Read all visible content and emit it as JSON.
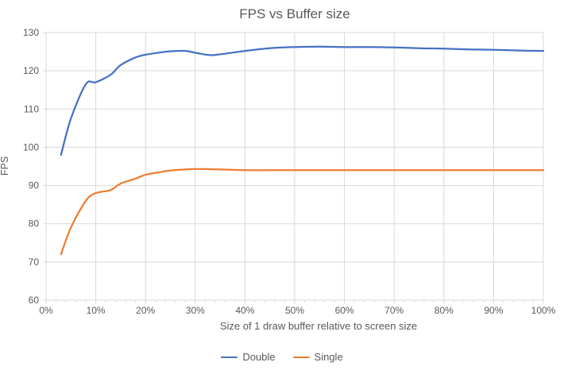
{
  "title": "FPS vs Buffer size",
  "colors": {
    "series_double": "#4472C4",
    "series_single": "#ED7D31",
    "gridline": "#D9D9D9",
    "text": "#595959",
    "background": "#FFFFFF"
  },
  "chart_data": {
    "type": "line",
    "title": "FPS vs Buffer size",
    "xlabel": "Size of 1 draw buffer relative to screen size",
    "ylabel": "FPS",
    "xlim": [
      0,
      100
    ],
    "ylim": [
      60,
      130
    ],
    "grid": true,
    "legend_position": "bottom",
    "smooth_lines": true,
    "x_ticks": [
      {
        "v": 0,
        "label": "0%"
      },
      {
        "v": 10,
        "label": "10%"
      },
      {
        "v": 20,
        "label": "20%"
      },
      {
        "v": 30,
        "label": "30%"
      },
      {
        "v": 40,
        "label": "40%"
      },
      {
        "v": 50,
        "label": "50%"
      },
      {
        "v": 60,
        "label": "60%"
      },
      {
        "v": 70,
        "label": "70%"
      },
      {
        "v": 80,
        "label": "80%"
      },
      {
        "v": 90,
        "label": "90%"
      },
      {
        "v": 100,
        "label": "100%"
      }
    ],
    "y_ticks": [
      {
        "v": 60,
        "label": "60"
      },
      {
        "v": 70,
        "label": "70"
      },
      {
        "v": 80,
        "label": "80"
      },
      {
        "v": 90,
        "label": "90"
      },
      {
        "v": 100,
        "label": "100"
      },
      {
        "v": 110,
        "label": "110"
      },
      {
        "v": 120,
        "label": "120"
      },
      {
        "v": 130,
        "label": "130"
      }
    ],
    "x_minor_tick_step": 2,
    "x": [
      3,
      5,
      8,
      10,
      13,
      15,
      18,
      20,
      23,
      25,
      28,
      30,
      33,
      35,
      40,
      45,
      50,
      55,
      60,
      65,
      70,
      75,
      80,
      85,
      90,
      95,
      100
    ],
    "series": [
      {
        "name": "Double",
        "color": "#4472C4",
        "values": [
          98,
          107.5,
          116.5,
          117,
          119,
          121.5,
          123.5,
          124.2,
          124.8,
          125.1,
          125.2,
          124.7,
          124.1,
          124.3,
          125.2,
          125.9,
          126.2,
          126.3,
          126.2,
          126.2,
          126.1,
          125.9,
          125.8,
          125.6,
          125.5,
          125.3,
          125.2
        ]
      },
      {
        "name": "Single",
        "color": "#ED7D31",
        "values": [
          72,
          79,
          86,
          88,
          88.8,
          90.5,
          91.8,
          92.8,
          93.5,
          93.9,
          94.2,
          94.3,
          94.25,
          94.2,
          94,
          94,
          94,
          94,
          94,
          94,
          94,
          94,
          94,
          94,
          94,
          94,
          94
        ]
      }
    ]
  }
}
